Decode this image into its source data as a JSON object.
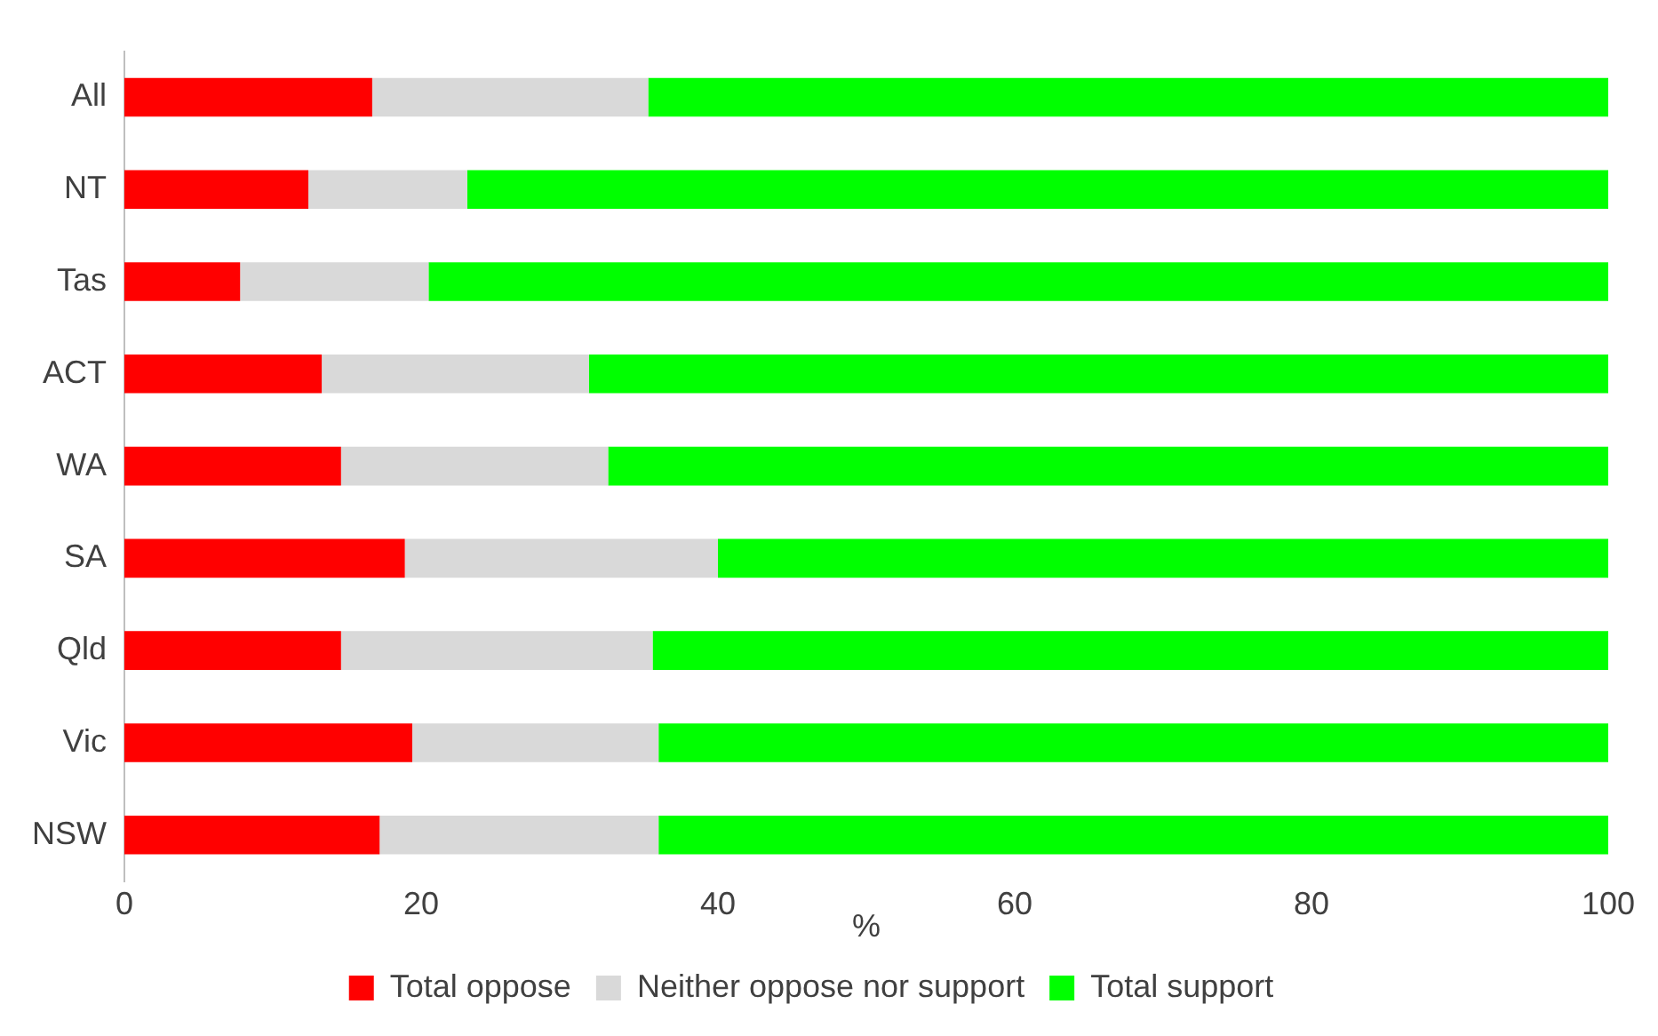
{
  "chart_data": {
    "type": "bar",
    "orientation": "horizontal",
    "stacked": true,
    "categories": [
      "All",
      "NT",
      "Tas",
      "ACT",
      "WA",
      "SA",
      "Qld",
      "Vic",
      "NSW"
    ],
    "series": [
      {
        "name": "Total oppose",
        "color": "#ff0000",
        "values": [
          16.7,
          12.4,
          7.8,
          13.3,
          14.6,
          18.9,
          14.6,
          19.4,
          17.2
        ]
      },
      {
        "name": "Neither oppose nor support",
        "color": "#d9d9d9",
        "values": [
          18.6,
          10.7,
          12.7,
          18.0,
          18.0,
          21.1,
          21.0,
          16.6,
          18.8
        ]
      },
      {
        "name": "Total support",
        "color": "#00ff00",
        "values": [
          64.7,
          76.9,
          79.5,
          68.7,
          67.4,
          60.0,
          64.4,
          64.0,
          64.0
        ]
      }
    ],
    "xlabel": "%",
    "xlim": [
      0,
      100
    ],
    "xticks": [
      0,
      20,
      40,
      60,
      80,
      100
    ],
    "grid": false,
    "legend": "bottom"
  }
}
